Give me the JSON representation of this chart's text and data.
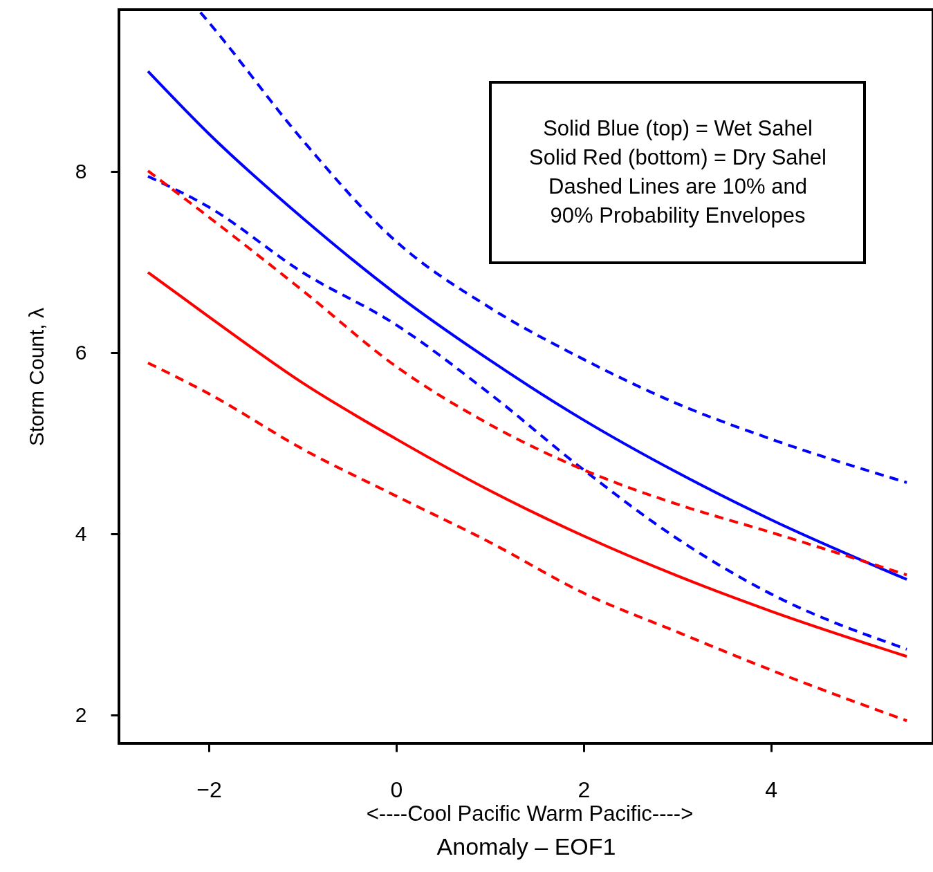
{
  "chart_data": {
    "type": "line",
    "xlabel": "Anomaly – EOF1",
    "ylabel": "Storm Count, λ",
    "x": [
      -2.65,
      -2,
      -1,
      0,
      1,
      2,
      3,
      4,
      5.45
    ],
    "series": [
      {
        "color": "#0000ff",
        "line_style": "solid",
        "values": [
          9.11,
          8.42,
          7.49,
          6.65,
          5.92,
          5.26,
          4.68,
          4.16,
          3.5
        ]
      },
      {
        "color": "#0000ff",
        "line_style": "dashed",
        "x": [
          -2.09,
          -2,
          -1,
          0,
          1,
          2,
          3,
          4,
          5.45
        ],
        "values": [
          9.76,
          9.65,
          8.35,
          7.23,
          6.5,
          5.93,
          5.44,
          5.05,
          4.57
        ]
      },
      {
        "color": "#0000ff",
        "line_style": "dashed",
        "values": [
          7.95,
          7.61,
          6.89,
          6.31,
          5.55,
          4.71,
          3.95,
          3.34,
          2.73
        ]
      },
      {
        "color": "#ff0000",
        "line_style": "solid",
        "values": [
          6.89,
          6.4,
          5.67,
          5.05,
          4.48,
          3.98,
          3.54,
          3.15,
          2.65
        ]
      },
      {
        "color": "#ff0000",
        "line_style": "dashed",
        "values": [
          8.01,
          7.5,
          6.69,
          5.85,
          5.21,
          4.71,
          4.33,
          4.02,
          3.55
        ]
      },
      {
        "color": "#ff0000",
        "line_style": "dashed",
        "values": [
          5.89,
          5.55,
          4.94,
          4.42,
          3.91,
          3.35,
          2.92,
          2.5,
          1.94
        ]
      }
    ],
    "xlim": [
      -2.96,
      5.73
    ],
    "ylim": [
      1.69,
      9.79
    ],
    "xticks": [
      -2,
      0,
      2,
      4
    ],
    "yticks": [
      2,
      4,
      6,
      8
    ],
    "grid": false,
    "marker": "none",
    "annotations": [
      "Solid Blue (top) = Wet Sahel",
      "Solid Red (bottom) = Dry Sahel",
      "Dashed Lines are 10% and",
      "90% Probability Envelopes",
      "<----Cool Pacific    Warm Pacific---->"
    ]
  }
}
